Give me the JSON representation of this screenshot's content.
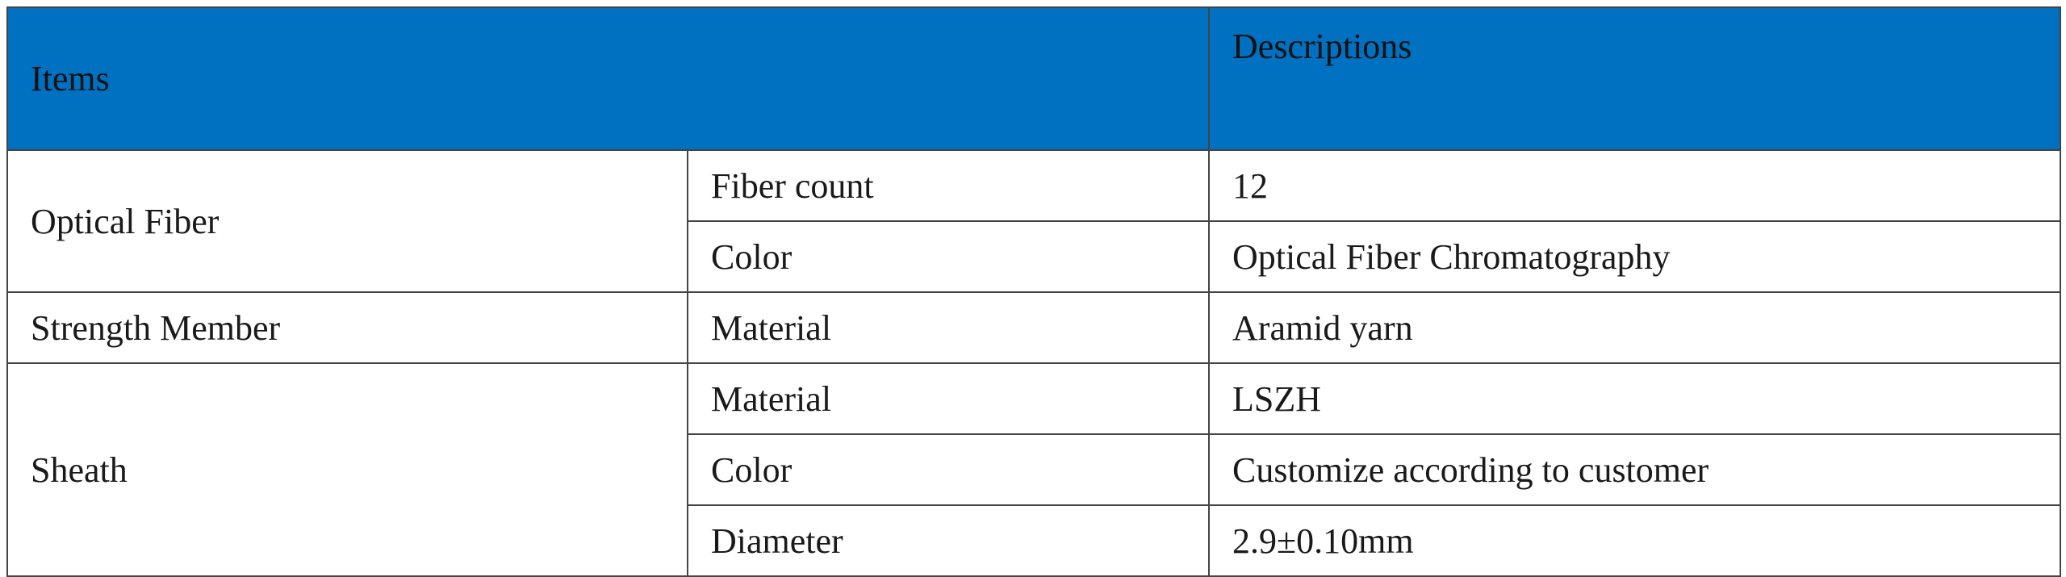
{
  "header": {
    "items": "Items",
    "descriptions": "Descriptions"
  },
  "groups": [
    {
      "label": "Optical Fiber",
      "rows": [
        {
          "item": "Fiber count",
          "description": "12"
        },
        {
          "item": "Color",
          "description": "Optical Fiber Chromatography"
        }
      ]
    },
    {
      "label": "Strength Member",
      "rows": [
        {
          "item": "Material",
          "description": "Aramid yarn"
        }
      ]
    },
    {
      "label": "Sheath",
      "rows": [
        {
          "item": "Material",
          "description": "LSZH"
        },
        {
          "item": "Color",
          "description": "Customize according to customer"
        },
        {
          "item": "Diameter",
          "description": "2.9±0.10mm"
        }
      ]
    }
  ]
}
